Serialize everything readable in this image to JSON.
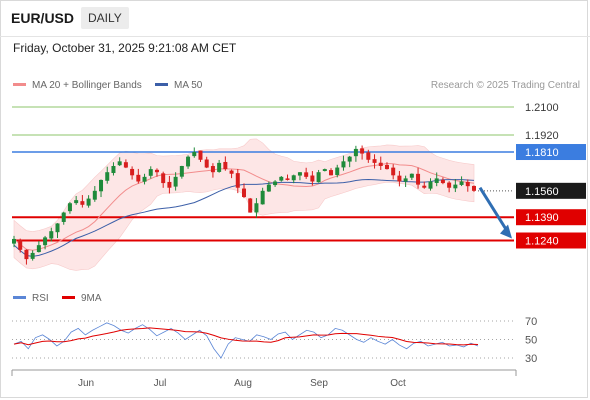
{
  "header": {
    "symbol": "EUR/USD",
    "timeframe": "DAILY"
  },
  "timestamp": "Friday, October 31, 2025 9:21:08 AM CET",
  "legend": {
    "ma20_label": "MA 20 + Bollinger Bands",
    "ma50_label": "MA 50",
    "credit": "Research © 2025 Trading Central"
  },
  "rsi_legend": {
    "rsi_label": "RSI",
    "ma_label": "9MA"
  },
  "colors": {
    "ma20": "#f28c8c",
    "ma50": "#3c5fa8",
    "band_fill": "#fde6e6",
    "up": "#1f8a3a",
    "down": "#d81e1e",
    "resistance_green": "#8cc56b",
    "pivot_blue": "#3b7de0",
    "support_red": "#e00000",
    "arrow": "#2f6eb3",
    "rsi": "#5b86d6",
    "rsi_ma": "#e00000"
  },
  "chart_data": [
    {
      "type": "candlestick",
      "title": "",
      "x_axis_labels": [
        "Jun",
        "Jul",
        "Aug",
        "Sep",
        "Oct"
      ],
      "y_scale": "linear",
      "levels": [
        {
          "value": 1.21,
          "label": "1.2100",
          "role": "resistance",
          "style": "green-line"
        },
        {
          "value": 1.192,
          "label": "1.1920",
          "role": "resistance",
          "style": "green-line"
        },
        {
          "value": 1.181,
          "label": "1.1810",
          "role": "pivot",
          "style": "blue-line"
        },
        {
          "value": 1.156,
          "label": "1.1560",
          "role": "last-price",
          "style": "dotted"
        },
        {
          "value": 1.139,
          "label": "1.1390",
          "role": "support",
          "style": "red-line"
        },
        {
          "value": 1.124,
          "label": "1.1240",
          "role": "support",
          "style": "red-line"
        }
      ],
      "forecast_arrow": {
        "from": 1.158,
        "to": 1.124,
        "direction": "down"
      },
      "series": [
        {
          "name": "MA 20",
          "kind": "line"
        },
        {
          "name": "MA 50",
          "kind": "line"
        },
        {
          "name": "Bollinger Bands",
          "kind": "band"
        }
      ],
      "close_approx": [
        1.125,
        1.118,
        1.112,
        1.116,
        1.121,
        1.126,
        1.13,
        1.135,
        1.142,
        1.148,
        1.15,
        1.147,
        1.151,
        1.156,
        1.163,
        1.168,
        1.172,
        1.175,
        1.171,
        1.166,
        1.162,
        1.165,
        1.17,
        1.168,
        1.161,
        1.158,
        1.165,
        1.172,
        1.178,
        1.181,
        1.176,
        1.171,
        1.168,
        1.174,
        1.17,
        1.167,
        1.158,
        1.152,
        1.142,
        1.148,
        1.156,
        1.16,
        1.162,
        1.165,
        1.163,
        1.166,
        1.168,
        1.165,
        1.162,
        1.168,
        1.17,
        1.166,
        1.171,
        1.175,
        1.178,
        1.183,
        1.18,
        1.176,
        1.174,
        1.172,
        1.17,
        1.166,
        1.162,
        1.164,
        1.167,
        1.16,
        1.158,
        1.162,
        1.164,
        1.161,
        1.158,
        1.16,
        1.162,
        1.159,
        1.156
      ]
    },
    {
      "type": "line",
      "title": "RSI",
      "yticks": [
        30,
        50,
        70
      ],
      "series": [
        {
          "name": "RSI"
        },
        {
          "name": "9MA"
        }
      ],
      "rsi_approx": [
        45,
        48,
        40,
        52,
        55,
        50,
        43,
        48,
        58,
        62,
        55,
        60,
        64,
        68,
        65,
        60,
        57,
        62,
        66,
        61,
        54,
        58,
        62,
        57,
        50,
        55,
        60,
        54,
        40,
        30,
        45,
        52,
        50,
        48,
        55,
        53,
        50,
        56,
        58,
        50,
        55,
        60,
        58,
        52,
        55,
        62,
        60,
        55,
        50,
        47,
        52,
        48,
        45,
        50,
        44,
        40,
        46,
        48,
        43,
        45,
        47,
        43,
        44,
        42,
        46,
        43
      ]
    }
  ]
}
